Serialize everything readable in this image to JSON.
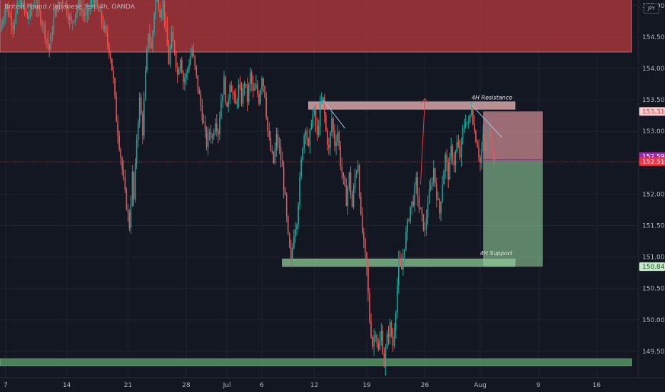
{
  "header": {
    "symbol": "British Pound / Japanese Yen, 4h, OANDA",
    "currency": "JPY"
  },
  "chart_data": {
    "type": "candlestick",
    "title": "British Pound / Japanese Yen, 4h, OANDA",
    "ylabel": "JPY",
    "ylim": [
      149.18,
      155.3
    ],
    "y_ticks": [
      "149.500",
      "150.000",
      "150.500",
      "151.000",
      "151.500",
      "152.000",
      "152.500",
      "153.000",
      "153.500",
      "154.000",
      "154.500",
      "155.000"
    ],
    "x_ticks": [
      "7",
      "14",
      "21",
      "28",
      "Jul",
      "6",
      "12",
      "19",
      "26",
      "Aug",
      "9",
      "16"
    ],
    "x_tick_index": [
      0,
      42,
      84,
      124,
      152,
      176,
      212,
      248,
      288,
      326,
      366,
      406
    ],
    "grid": true,
    "price_badges": [
      {
        "value": "153.316",
        "y": 153.316,
        "bg": "#f7cdd0",
        "fg": "#f23645"
      },
      {
        "value": "152.598",
        "y": 152.598,
        "bg": "#9c27b0",
        "fg": "#ffffff"
      },
      {
        "value": "152.517",
        "y": 152.517,
        "bg": "#f23645",
        "fg": "#ffffff"
      },
      {
        "value": "150.846",
        "y": 150.846,
        "bg": "#c8e6c9",
        "fg": "#1b5e20"
      }
    ],
    "zones": [
      {
        "label": "",
        "x": [
          -4,
          430
        ],
        "y": [
          154.26,
          155.3
        ],
        "fill": "#b8393d",
        "opacity": 0.75
      },
      {
        "label": "4H Resistance",
        "x": [
          208,
          350
        ],
        "y": [
          153.35,
          153.47
        ],
        "fill": "#d9a5a5",
        "opacity": 0.85
      },
      {
        "label": "4H Support",
        "x": [
          190,
          350
        ],
        "y": [
          150.85,
          150.97
        ],
        "fill": "#7cb684",
        "opacity": 0.85
      },
      {
        "label": "",
        "x": [
          -4,
          430
        ],
        "y": [
          149.27,
          149.38
        ],
        "fill": "#4e8f5b",
        "opacity": 0.9
      }
    ],
    "position": {
      "x": [
        328,
        369
      ],
      "entry": 152.55,
      "stop": 153.316,
      "target": 150.846
    },
    "lines": [
      {
        "from": [
          218,
          153.5
        ],
        "to": [
          233,
          153.05
        ],
        "color": "#9ec5e8"
      },
      {
        "from": [
          320,
          153.42
        ],
        "to": [
          341,
          152.9
        ],
        "color": "#9ec5e8"
      }
    ],
    "arrow": {
      "from": [
        285,
        152.15
      ],
      "to": [
        288,
        153.52
      ],
      "color": "#f23645"
    },
    "last_price": 152.517,
    "series": [
      {
        "name": "",
        "values": [
          [
            -4,
            154.6
          ],
          [
            0,
            155.0
          ],
          [
            5,
            154.7
          ],
          [
            10,
            155.1
          ],
          [
            15,
            154.8
          ],
          [
            20,
            155.05
          ],
          [
            25,
            154.75
          ],
          [
            30,
            154.3
          ],
          [
            34,
            154.95
          ],
          [
            40,
            155.1
          ],
          [
            45,
            154.7
          ],
          [
            50,
            155.05
          ],
          [
            55,
            154.8
          ],
          [
            60,
            155.1
          ],
          [
            64,
            154.9
          ],
          [
            68,
            154.6
          ],
          [
            72,
            154.2
          ],
          [
            74,
            153.8
          ],
          [
            76,
            153.2
          ],
          [
            79,
            152.6
          ],
          [
            82,
            152.0
          ],
          [
            85,
            151.5
          ],
          [
            87,
            152.3
          ],
          [
            88,
            151.9
          ],
          [
            90,
            152.9
          ],
          [
            92,
            153.5
          ],
          [
            94,
            153.0
          ],
          [
            96,
            153.9
          ],
          [
            98,
            154.6
          ],
          [
            100,
            154.3
          ],
          [
            102,
            154.9
          ],
          [
            104,
            155.2
          ],
          [
            106,
            154.9
          ],
          [
            108,
            155.05
          ],
          [
            110,
            154.6
          ],
          [
            112,
            154.1
          ],
          [
            114,
            154.5
          ],
          [
            116,
            154.3
          ],
          [
            118,
            153.9
          ],
          [
            120,
            154.2
          ],
          [
            122,
            153.8
          ],
          [
            124,
            153.9
          ],
          [
            126,
            154.1
          ],
          [
            128,
            154.3
          ],
          [
            130,
            154.0
          ],
          [
            132,
            153.7
          ],
          [
            134,
            153.4
          ],
          [
            136,
            153.1
          ],
          [
            138,
            152.8
          ],
          [
            140,
            153.0
          ],
          [
            142,
            152.9
          ],
          [
            144,
            153.2
          ],
          [
            146,
            153.0
          ],
          [
            148,
            153.5
          ],
          [
            150,
            153.8
          ],
          [
            152,
            153.3
          ],
          [
            154,
            153.8
          ],
          [
            156,
            153.6
          ],
          [
            158,
            153.4
          ],
          [
            160,
            153.7
          ],
          [
            162,
            153.5
          ],
          [
            164,
            153.8
          ],
          [
            166,
            153.5
          ],
          [
            168,
            153.9
          ],
          [
            170,
            153.6
          ],
          [
            172,
            153.7
          ],
          [
            174,
            153.5
          ],
          [
            176,
            153.9
          ],
          [
            178,
            153.6
          ],
          [
            180,
            153.0
          ],
          [
            182,
            152.7
          ],
          [
            184,
            152.5
          ],
          [
            186,
            152.9
          ],
          [
            188,
            152.7
          ],
          [
            190,
            152.4
          ],
          [
            192,
            151.9
          ],
          [
            194,
            151.3
          ],
          [
            196,
            150.9
          ],
          [
            198,
            151.4
          ],
          [
            200,
            151.6
          ],
          [
            202,
            152.2
          ],
          [
            204,
            152.8
          ],
          [
            206,
            153.1
          ],
          [
            208,
            152.7
          ],
          [
            210,
            153.2
          ],
          [
            212,
            153.3
          ],
          [
            214,
            152.9
          ],
          [
            216,
            153.4
          ],
          [
            218,
            153.5
          ],
          [
            220,
            153.0
          ],
          [
            222,
            152.7
          ],
          [
            224,
            153.2
          ],
          [
            226,
            152.8
          ],
          [
            228,
            153.0
          ],
          [
            230,
            152.5
          ],
          [
            232,
            152.2
          ],
          [
            234,
            151.9
          ],
          [
            236,
            152.3
          ],
          [
            238,
            151.8
          ],
          [
            240,
            152.3
          ],
          [
            242,
            152.5
          ],
          [
            244,
            151.6
          ],
          [
            246,
            151.2
          ],
          [
            248,
            150.8
          ],
          [
            250,
            150.0
          ],
          [
            252,
            149.6
          ],
          [
            254,
            149.85
          ],
          [
            256,
            149.5
          ],
          [
            258,
            149.8
          ],
          [
            260,
            149.3
          ],
          [
            262,
            149.7
          ],
          [
            264,
            149.9
          ],
          [
            266,
            149.6
          ],
          [
            268,
            150.2
          ],
          [
            270,
            150.9
          ],
          [
            272,
            150.8
          ],
          [
            274,
            151.2
          ],
          [
            276,
            151.5
          ],
          [
            278,
            151.8
          ],
          [
            280,
            151.9
          ],
          [
            282,
            152.2
          ],
          [
            284,
            151.8
          ],
          [
            286,
            151.6
          ],
          [
            288,
            151.4
          ],
          [
            290,
            151.9
          ],
          [
            292,
            152.1
          ],
          [
            294,
            152.4
          ],
          [
            296,
            152.0
          ],
          [
            298,
            151.7
          ],
          [
            300,
            152.2
          ],
          [
            302,
            152.6
          ],
          [
            304,
            152.3
          ],
          [
            306,
            152.7
          ],
          [
            308,
            152.5
          ],
          [
            310,
            152.8
          ],
          [
            312,
            152.6
          ],
          [
            314,
            153.0
          ],
          [
            316,
            153.2
          ],
          [
            318,
            153.1
          ],
          [
            320,
            153.4
          ],
          [
            322,
            153.0
          ],
          [
            324,
            152.8
          ],
          [
            326,
            152.5
          ],
          [
            328,
            152.9
          ],
          [
            330,
            152.7
          ],
          [
            332,
            153.1
          ],
          [
            334,
            152.8
          ],
          [
            336,
            152.517
          ]
        ]
      }
    ]
  }
}
